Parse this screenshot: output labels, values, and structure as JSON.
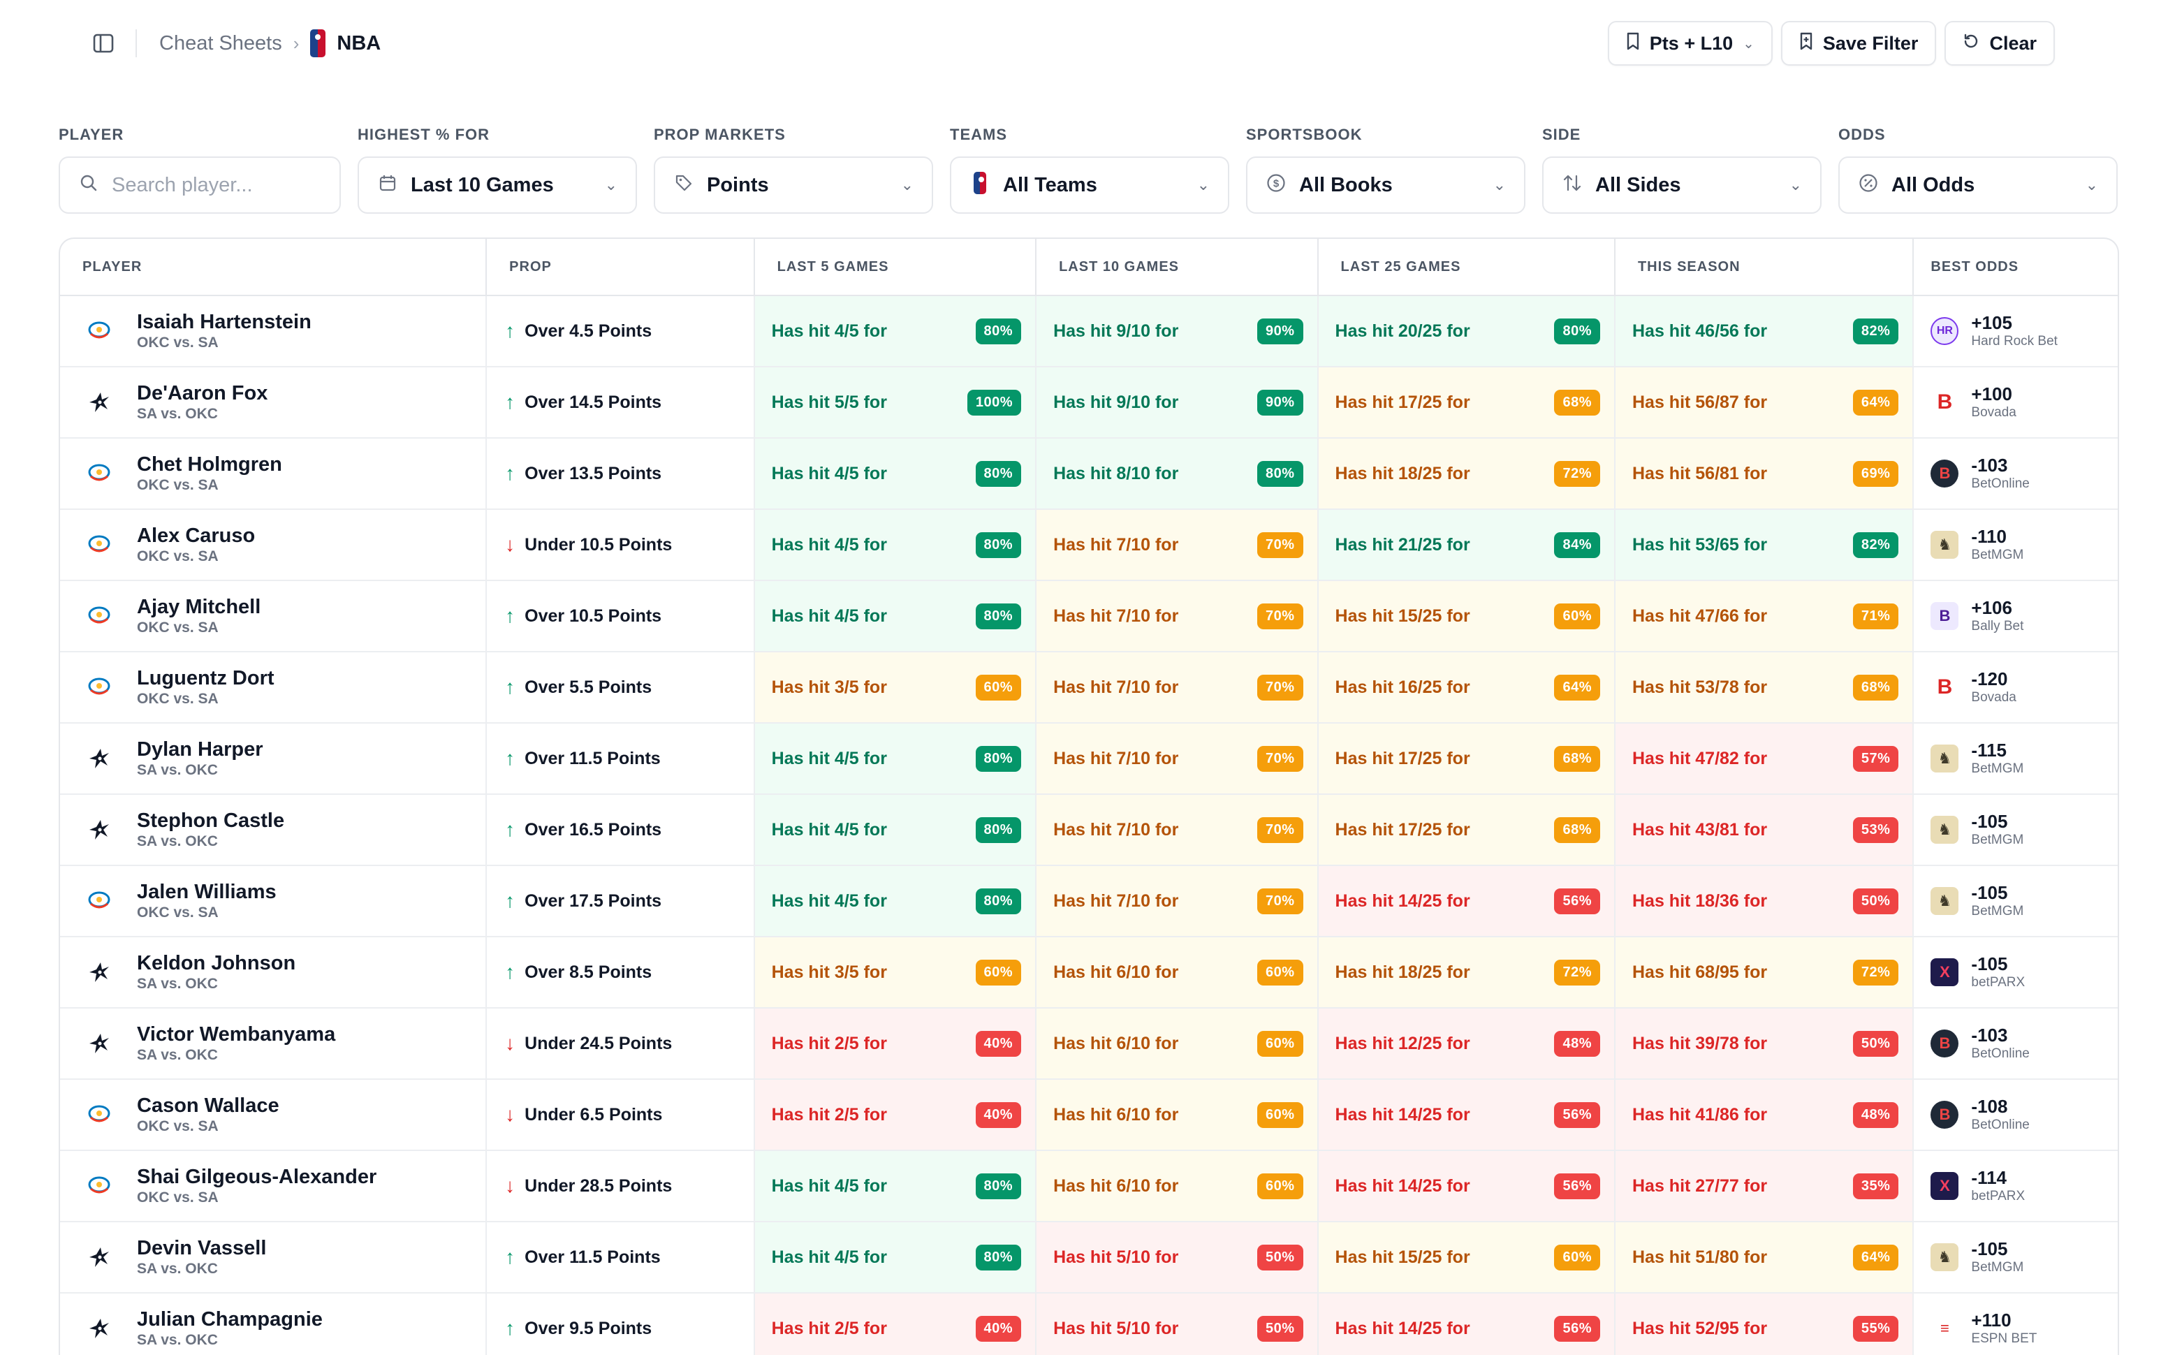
{
  "header": {
    "breadcrumb_root": "Cheat Sheets",
    "breadcrumb_current": "NBA",
    "preset_label": "Pts + L10",
    "save_filter_label": "Save Filter",
    "clear_label": "Clear"
  },
  "filters": {
    "player": {
      "label": "PLAYER",
      "placeholder": "Search player..."
    },
    "highest": {
      "label": "HIGHEST % FOR",
      "value": "Last 10 Games"
    },
    "markets": {
      "label": "PROP MARKETS",
      "value": "Points"
    },
    "teams": {
      "label": "TEAMS",
      "value": "All Teams"
    },
    "sportsbook": {
      "label": "SPORTSBOOK",
      "value": "All Books"
    },
    "side": {
      "label": "SIDE",
      "value": "All Sides"
    },
    "odds": {
      "label": "ODDS",
      "value": "All Odds"
    }
  },
  "table": {
    "columns": [
      "PLAYER",
      "PROP",
      "LAST 5 GAMES",
      "LAST 10 GAMES",
      "LAST 25 GAMES",
      "THIS SEASON",
      "BEST ODDS"
    ],
    "rows": [
      {
        "team": "okc",
        "name": "Isaiah Hartenstein",
        "match": "OKC vs. SA",
        "dir": "up",
        "prop": "Over 4.5 Points",
        "l5": {
          "text": "Has hit 4/5 for",
          "pct": "80%",
          "tier": "g"
        },
        "l10": {
          "text": "Has hit 9/10 for",
          "pct": "90%",
          "tier": "g"
        },
        "l25": {
          "text": "Has hit 20/25 for",
          "pct": "80%",
          "tier": "g"
        },
        "season": {
          "text": "Has hit 46/56 for",
          "pct": "82%",
          "tier": "g"
        },
        "odds": "+105",
        "book": "Hard Rock Bet",
        "book_id": "hardrock"
      },
      {
        "team": "sa",
        "name": "De'Aaron Fox",
        "match": "SA vs. OKC",
        "dir": "up",
        "prop": "Over 14.5 Points",
        "l5": {
          "text": "Has hit 5/5 for",
          "pct": "100%",
          "tier": "g"
        },
        "l10": {
          "text": "Has hit 9/10 for",
          "pct": "90%",
          "tier": "g"
        },
        "l25": {
          "text": "Has hit 17/25 for",
          "pct": "68%",
          "tier": "y"
        },
        "season": {
          "text": "Has hit 56/87 for",
          "pct": "64%",
          "tier": "y"
        },
        "odds": "+100",
        "book": "Bovada",
        "book_id": "bovada"
      },
      {
        "team": "okc",
        "name": "Chet Holmgren",
        "match": "OKC vs. SA",
        "dir": "up",
        "prop": "Over 13.5 Points",
        "l5": {
          "text": "Has hit 4/5 for",
          "pct": "80%",
          "tier": "g"
        },
        "l10": {
          "text": "Has hit 8/10 for",
          "pct": "80%",
          "tier": "g"
        },
        "l25": {
          "text": "Has hit 18/25 for",
          "pct": "72%",
          "tier": "y"
        },
        "season": {
          "text": "Has hit 56/81 for",
          "pct": "69%",
          "tier": "y"
        },
        "odds": "-103",
        "book": "BetOnline",
        "book_id": "betonline"
      },
      {
        "team": "okc",
        "name": "Alex Caruso",
        "match": "OKC vs. SA",
        "dir": "down",
        "prop": "Under 10.5 Points",
        "l5": {
          "text": "Has hit 4/5 for",
          "pct": "80%",
          "tier": "g"
        },
        "l10": {
          "text": "Has hit 7/10 for",
          "pct": "70%",
          "tier": "y"
        },
        "l25": {
          "text": "Has hit 21/25 for",
          "pct": "84%",
          "tier": "g"
        },
        "season": {
          "text": "Has hit 53/65 for",
          "pct": "82%",
          "tier": "g"
        },
        "odds": "-110",
        "book": "BetMGM",
        "book_id": "betmgm"
      },
      {
        "team": "okc",
        "name": "Ajay Mitchell",
        "match": "OKC vs. SA",
        "dir": "up",
        "prop": "Over 10.5 Points",
        "l5": {
          "text": "Has hit 4/5 for",
          "pct": "80%",
          "tier": "g"
        },
        "l10": {
          "text": "Has hit 7/10 for",
          "pct": "70%",
          "tier": "y"
        },
        "l25": {
          "text": "Has hit 15/25 for",
          "pct": "60%",
          "tier": "y"
        },
        "season": {
          "text": "Has hit 47/66 for",
          "pct": "71%",
          "tier": "y"
        },
        "odds": "+106",
        "book": "Bally Bet",
        "book_id": "bally"
      },
      {
        "team": "okc",
        "name": "Luguentz Dort",
        "match": "OKC vs. SA",
        "dir": "up",
        "prop": "Over 5.5 Points",
        "l5": {
          "text": "Has hit 3/5 for",
          "pct": "60%",
          "tier": "y"
        },
        "l10": {
          "text": "Has hit 7/10 for",
          "pct": "70%",
          "tier": "y"
        },
        "l25": {
          "text": "Has hit 16/25 for",
          "pct": "64%",
          "tier": "y"
        },
        "season": {
          "text": "Has hit 53/78 for",
          "pct": "68%",
          "tier": "y"
        },
        "odds": "-120",
        "book": "Bovada",
        "book_id": "bovada"
      },
      {
        "team": "sa",
        "name": "Dylan Harper",
        "match": "SA vs. OKC",
        "dir": "up",
        "prop": "Over 11.5 Points",
        "l5": {
          "text": "Has hit 4/5 for",
          "pct": "80%",
          "tier": "g"
        },
        "l10": {
          "text": "Has hit 7/10 for",
          "pct": "70%",
          "tier": "y"
        },
        "l25": {
          "text": "Has hit 17/25 for",
          "pct": "68%",
          "tier": "y"
        },
        "season": {
          "text": "Has hit 47/82 for",
          "pct": "57%",
          "tier": "r"
        },
        "odds": "-115",
        "book": "BetMGM",
        "book_id": "betmgm"
      },
      {
        "team": "sa",
        "name": "Stephon Castle",
        "match": "SA vs. OKC",
        "dir": "up",
        "prop": "Over 16.5 Points",
        "l5": {
          "text": "Has hit 4/5 for",
          "pct": "80%",
          "tier": "g"
        },
        "l10": {
          "text": "Has hit 7/10 for",
          "pct": "70%",
          "tier": "y"
        },
        "l25": {
          "text": "Has hit 17/25 for",
          "pct": "68%",
          "tier": "y"
        },
        "season": {
          "text": "Has hit 43/81 for",
          "pct": "53%",
          "tier": "r"
        },
        "odds": "-105",
        "book": "BetMGM",
        "book_id": "betmgm"
      },
      {
        "team": "okc",
        "name": "Jalen Williams",
        "match": "OKC vs. SA",
        "dir": "up",
        "prop": "Over 17.5 Points",
        "l5": {
          "text": "Has hit 4/5 for",
          "pct": "80%",
          "tier": "g"
        },
        "l10": {
          "text": "Has hit 7/10 for",
          "pct": "70%",
          "tier": "y"
        },
        "l25": {
          "text": "Has hit 14/25 for",
          "pct": "56%",
          "tier": "r"
        },
        "season": {
          "text": "Has hit 18/36 for",
          "pct": "50%",
          "tier": "r"
        },
        "odds": "-105",
        "book": "BetMGM",
        "book_id": "betmgm"
      },
      {
        "team": "sa",
        "name": "Keldon Johnson",
        "match": "SA vs. OKC",
        "dir": "up",
        "prop": "Over 8.5 Points",
        "l5": {
          "text": "Has hit 3/5 for",
          "pct": "60%",
          "tier": "y"
        },
        "l10": {
          "text": "Has hit 6/10 for",
          "pct": "60%",
          "tier": "y"
        },
        "l25": {
          "text": "Has hit 18/25 for",
          "pct": "72%",
          "tier": "y"
        },
        "season": {
          "text": "Has hit 68/95 for",
          "pct": "72%",
          "tier": "y"
        },
        "odds": "-105",
        "book": "betPARX",
        "book_id": "betparx"
      },
      {
        "team": "sa",
        "name": "Victor Wembanyama",
        "match": "SA vs. OKC",
        "dir": "down",
        "prop": "Under 24.5 Points",
        "l5": {
          "text": "Has hit 2/5 for",
          "pct": "40%",
          "tier": "r"
        },
        "l10": {
          "text": "Has hit 6/10 for",
          "pct": "60%",
          "tier": "y"
        },
        "l25": {
          "text": "Has hit 12/25 for",
          "pct": "48%",
          "tier": "r"
        },
        "season": {
          "text": "Has hit 39/78 for",
          "pct": "50%",
          "tier": "r"
        },
        "odds": "-103",
        "book": "BetOnline",
        "book_id": "betonline"
      },
      {
        "team": "okc",
        "name": "Cason Wallace",
        "match": "OKC vs. SA",
        "dir": "down",
        "prop": "Under 6.5 Points",
        "l5": {
          "text": "Has hit 2/5 for",
          "pct": "40%",
          "tier": "r"
        },
        "l10": {
          "text": "Has hit 6/10 for",
          "pct": "60%",
          "tier": "y"
        },
        "l25": {
          "text": "Has hit 14/25 for",
          "pct": "56%",
          "tier": "r"
        },
        "season": {
          "text": "Has hit 41/86 for",
          "pct": "48%",
          "tier": "r"
        },
        "odds": "-108",
        "book": "BetOnline",
        "book_id": "betonline"
      },
      {
        "team": "okc",
        "name": "Shai Gilgeous-Alexander",
        "match": "OKC vs. SA",
        "dir": "down",
        "prop": "Under 28.5 Points",
        "l5": {
          "text": "Has hit 4/5 for",
          "pct": "80%",
          "tier": "g"
        },
        "l10": {
          "text": "Has hit 6/10 for",
          "pct": "60%",
          "tier": "y"
        },
        "l25": {
          "text": "Has hit 14/25 for",
          "pct": "56%",
          "tier": "r"
        },
        "season": {
          "text": "Has hit 27/77 for",
          "pct": "35%",
          "tier": "r"
        },
        "odds": "-114",
        "book": "betPARX",
        "book_id": "betparx"
      },
      {
        "team": "sa",
        "name": "Devin Vassell",
        "match": "SA vs. OKC",
        "dir": "up",
        "prop": "Over 11.5 Points",
        "l5": {
          "text": "Has hit 4/5 for",
          "pct": "80%",
          "tier": "g"
        },
        "l10": {
          "text": "Has hit 5/10 for",
          "pct": "50%",
          "tier": "r"
        },
        "l25": {
          "text": "Has hit 15/25 for",
          "pct": "60%",
          "tier": "y"
        },
        "season": {
          "text": "Has hit 51/80 for",
          "pct": "64%",
          "tier": "y"
        },
        "odds": "-105",
        "book": "BetMGM",
        "book_id": "betmgm"
      },
      {
        "team": "sa",
        "name": "Julian Champagnie",
        "match": "SA vs. OKC",
        "dir": "up",
        "prop": "Over 9.5 Points",
        "l5": {
          "text": "Has hit 2/5 for",
          "pct": "40%",
          "tier": "r"
        },
        "l10": {
          "text": "Has hit 5/10 for",
          "pct": "50%",
          "tier": "r"
        },
        "l25": {
          "text": "Has hit 14/25 for",
          "pct": "56%",
          "tier": "r"
        },
        "season": {
          "text": "Has hit 52/95 for",
          "pct": "55%",
          "tier": "r"
        },
        "odds": "+110",
        "book": "ESPN BET",
        "book_id": "espn"
      }
    ]
  },
  "colors": {
    "green_bg": "#effcf5",
    "green_text": "#047857",
    "green_badge": "#059669",
    "yellow_bg": "#fefbec",
    "yellow_text": "#b45309",
    "yellow_badge": "#f59e0b",
    "red_bg": "#fef2f2",
    "red_text": "#dc2626",
    "red_badge": "#ef4444"
  }
}
